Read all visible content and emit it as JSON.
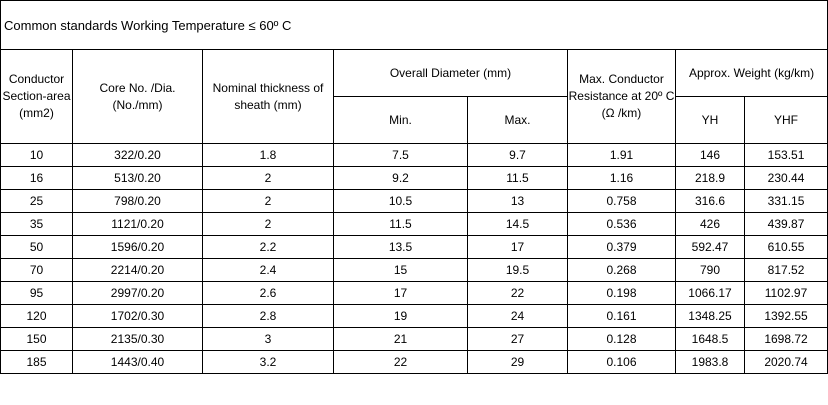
{
  "title": "Common standards Working Temperature ≤ 60º C",
  "headers": {
    "section_area": "Conductor Section-area (mm2)",
    "core": "Core No. /Dia. (No./mm)",
    "sheath": "Nominal thickness of sheath  (mm)",
    "overall_diameter": "Overall  Diameter (mm)",
    "min": "Min.",
    "max": "Max.",
    "resistance": "Max. Conductor Resistance at 20º C  (Ω /km)",
    "weight": "Approx. Weight (kg/km)",
    "yh": "YH",
    "yhf": "YHF"
  },
  "rows": [
    {
      "area": "10",
      "core": "322/0.20",
      "sheath": "1.8",
      "min": "7.5",
      "max": "9.7",
      "res": "1.91",
      "yh": "146",
      "yhf": "153.51"
    },
    {
      "area": "16",
      "core": "513/0.20",
      "sheath": "2",
      "min": "9.2",
      "max": "11.5",
      "res": "1.16",
      "yh": "218.9",
      "yhf": "230.44"
    },
    {
      "area": "25",
      "core": "798/0.20",
      "sheath": "2",
      "min": "10.5",
      "max": "13",
      "res": "0.758",
      "yh": "316.6",
      "yhf": "331.15"
    },
    {
      "area": "35",
      "core": "1121/0.20",
      "sheath": "2",
      "min": "11.5",
      "max": "14.5",
      "res": "0.536",
      "yh": "426",
      "yhf": "439.87"
    },
    {
      "area": "50",
      "core": "1596/0.20",
      "sheath": "2.2",
      "min": "13.5",
      "max": "17",
      "res": "0.379",
      "yh": "592.47",
      "yhf": "610.55"
    },
    {
      "area": "70",
      "core": "2214/0.20",
      "sheath": "2.4",
      "min": "15",
      "max": "19.5",
      "res": "0.268",
      "yh": "790",
      "yhf": "817.52"
    },
    {
      "area": "95",
      "core": "2997/0.20",
      "sheath": "2.6",
      "min": "17",
      "max": "22",
      "res": "0.198",
      "yh": "1066.17",
      "yhf": "1102.97"
    },
    {
      "area": "120",
      "core": "1702/0.30",
      "sheath": "2.8",
      "min": "19",
      "max": "24",
      "res": "0.161",
      "yh": "1348.25",
      "yhf": "1392.55"
    },
    {
      "area": "150",
      "core": "2135/0.30",
      "sheath": "3",
      "min": "21",
      "max": "27",
      "res": "0.128",
      "yh": "1648.5",
      "yhf": "1698.72"
    },
    {
      "area": "185",
      "core": "1443/0.40",
      "sheath": "3.2",
      "min": "22",
      "max": "29",
      "res": "0.106",
      "yh": "1983.8",
      "yhf": "2020.74"
    }
  ]
}
